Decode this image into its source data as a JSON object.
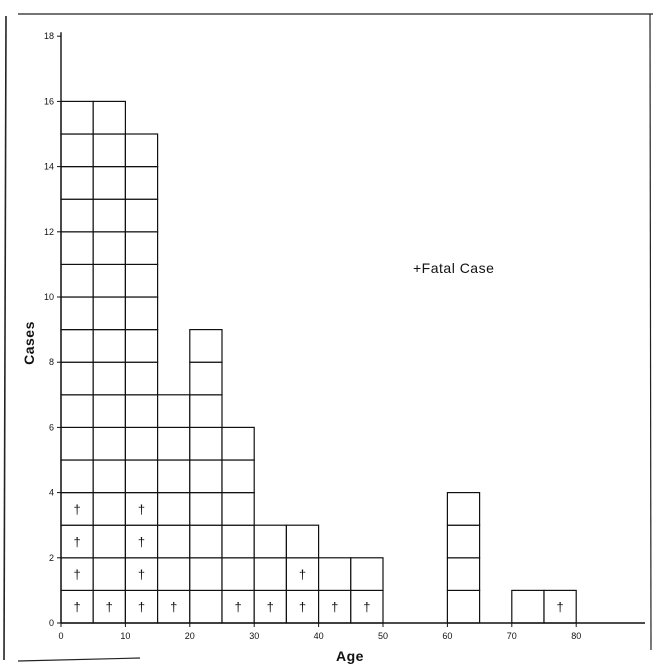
{
  "chart_data": {
    "type": "bar",
    "title": "",
    "xlabel": "Age",
    "ylabel": "Cases",
    "xlim": [
      0,
      90
    ],
    "ylim": [
      0,
      18
    ],
    "x_ticks": [
      "0",
      "10",
      "20",
      "30",
      "40",
      "50",
      "60",
      "70",
      "80"
    ],
    "y_ticks": [
      "0",
      "2",
      "4",
      "6",
      "8",
      "10",
      "12",
      "14",
      "16",
      "18"
    ],
    "bin_width": 5,
    "bins": [
      {
        "start": 0,
        "end": 5,
        "cases": 16,
        "fatal": 4
      },
      {
        "start": 5,
        "end": 10,
        "cases": 16,
        "fatal": 1
      },
      {
        "start": 10,
        "end": 15,
        "cases": 15,
        "fatal": 4
      },
      {
        "start": 15,
        "end": 20,
        "cases": 7,
        "fatal": 1
      },
      {
        "start": 20,
        "end": 25,
        "cases": 9,
        "fatal": 0
      },
      {
        "start": 25,
        "end": 30,
        "cases": 6,
        "fatal": 1
      },
      {
        "start": 30,
        "end": 35,
        "cases": 3,
        "fatal": 1
      },
      {
        "start": 35,
        "end": 40,
        "cases": 3,
        "fatal": 2
      },
      {
        "start": 40,
        "end": 45,
        "cases": 2,
        "fatal": 1
      },
      {
        "start": 45,
        "end": 50,
        "cases": 2,
        "fatal": 1
      },
      {
        "start": 60,
        "end": 65,
        "cases": 4,
        "fatal": 0
      },
      {
        "start": 70,
        "end": 75,
        "cases": 1,
        "fatal": 0
      },
      {
        "start": 75,
        "end": 80,
        "cases": 1,
        "fatal": 1
      }
    ],
    "fatal_symbol": "†",
    "legend": "+Fatal Case",
    "legend_position": "upper-right"
  }
}
